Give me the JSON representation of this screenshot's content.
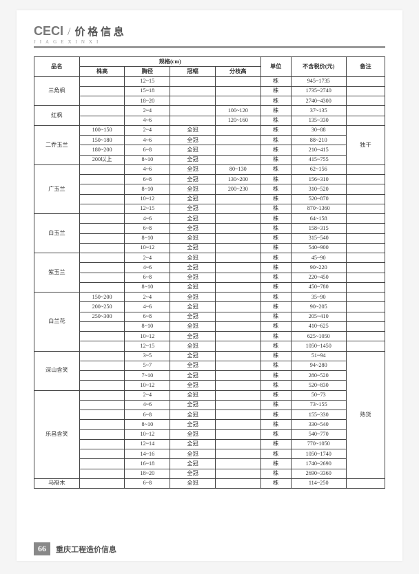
{
  "header": {
    "brand": "CECI",
    "title": "价 格 信 息",
    "pinyin": "JIAGEXINXI"
  },
  "footer": {
    "pageNum": "66",
    "text": "重庆工程造价信息"
  },
  "columns": {
    "name": "品名",
    "specGroup": "规格(cm)",
    "height": "株高",
    "diameter": "胸径",
    "crown": "冠幅",
    "branch": "分枝高",
    "unit": "单位",
    "price": "不含税价(元)",
    "note": "备注"
  },
  "unit": "株",
  "crownText": "全冠",
  "noteTextA": "独干",
  "noteTextB": "熟货",
  "groups": [
    {
      "name": "三角枫",
      "span": 3,
      "rows": [
        {
          "h": "",
          "d": "12~15",
          "c": "",
          "b": "",
          "p": "945~1735"
        },
        {
          "h": "",
          "d": "15~18",
          "c": "",
          "b": "",
          "p": "1735~2740"
        },
        {
          "h": "",
          "d": "18~20",
          "c": "",
          "b": "",
          "p": "2740~4300"
        }
      ]
    },
    {
      "name": "红枫",
      "span": 2,
      "rows": [
        {
          "h": "",
          "d": "2~4",
          "c": "",
          "b": "100~120",
          "p": "37~135"
        },
        {
          "h": "",
          "d": "4~6",
          "c": "",
          "b": "120~160",
          "p": "135~330"
        }
      ]
    },
    {
      "name": "二乔玉兰",
      "span": 4,
      "rows": [
        {
          "h": "100~150",
          "d": "2~4",
          "c": "全冠",
          "b": "",
          "p": "30~88"
        },
        {
          "h": "150~180",
          "d": "4~6",
          "c": "全冠",
          "b": "",
          "p": "88~210"
        },
        {
          "h": "180~200",
          "d": "6~8",
          "c": "全冠",
          "b": "",
          "p": "210~415"
        },
        {
          "h": "200以上",
          "d": "8~10",
          "c": "全冠",
          "b": "",
          "p": "415~755"
        }
      ]
    },
    {
      "name": "广玉兰",
      "span": 5,
      "rows": [
        {
          "h": "",
          "d": "4~6",
          "c": "全冠",
          "b": "80~130",
          "p": "62~156"
        },
        {
          "h": "",
          "d": "6~8",
          "c": "全冠",
          "b": "130~200",
          "p": "156~310"
        },
        {
          "h": "",
          "d": "8~10",
          "c": "全冠",
          "b": "200~230",
          "p": "310~520"
        },
        {
          "h": "",
          "d": "10~12",
          "c": "全冠",
          "b": "",
          "p": "520~870"
        },
        {
          "h": "",
          "d": "12~15",
          "c": "全冠",
          "b": "",
          "p": "870~1360"
        }
      ]
    },
    {
      "name": "白玉兰",
      "span": 4,
      "rows": [
        {
          "h": "",
          "d": "4~6",
          "c": "全冠",
          "b": "",
          "p": "64~158"
        },
        {
          "h": "",
          "d": "6~8",
          "c": "全冠",
          "b": "",
          "p": "158~315"
        },
        {
          "h": "",
          "d": "8~10",
          "c": "全冠",
          "b": "",
          "p": "315~540"
        },
        {
          "h": "",
          "d": "10~12",
          "c": "全冠",
          "b": "",
          "p": "540~900"
        }
      ]
    },
    {
      "name": "紫玉兰",
      "span": 4,
      "rows": [
        {
          "h": "",
          "d": "2~4",
          "c": "全冠",
          "b": "",
          "p": "45~90"
        },
        {
          "h": "",
          "d": "4~6",
          "c": "全冠",
          "b": "",
          "p": "90~220"
        },
        {
          "h": "",
          "d": "6~8",
          "c": "全冠",
          "b": "",
          "p": "220~450"
        },
        {
          "h": "",
          "d": "8~10",
          "c": "全冠",
          "b": "",
          "p": "450~780"
        }
      ]
    },
    {
      "name": "白兰花",
      "span": 6,
      "rows": [
        {
          "h": "150~200",
          "d": "2~4",
          "c": "全冠",
          "b": "",
          "p": "35~90"
        },
        {
          "h": "200~250",
          "d": "4~6",
          "c": "全冠",
          "b": "",
          "p": "90~205"
        },
        {
          "h": "250~300",
          "d": "6~8",
          "c": "全冠",
          "b": "",
          "p": "205~410"
        },
        {
          "h": "",
          "d": "8~10",
          "c": "全冠",
          "b": "",
          "p": "410~625"
        },
        {
          "h": "",
          "d": "10~12",
          "c": "全冠",
          "b": "",
          "p": "625~1050"
        },
        {
          "h": "",
          "d": "12~15",
          "c": "全冠",
          "b": "",
          "p": "1050~1450"
        }
      ]
    },
    {
      "name": "深山含笑",
      "span": 4,
      "rows": [
        {
          "h": "",
          "d": "3~5",
          "c": "全冠",
          "b": "",
          "p": "51~94"
        },
        {
          "h": "",
          "d": "5~7",
          "c": "全冠",
          "b": "",
          "p": "94~280"
        },
        {
          "h": "",
          "d": "7~10",
          "c": "全冠",
          "b": "",
          "p": "280~520"
        },
        {
          "h": "",
          "d": "10~12",
          "c": "全冠",
          "b": "",
          "p": "520~830"
        }
      ]
    },
    {
      "name": "乐昌含笑",
      "span": 9,
      "rows": [
        {
          "h": "",
          "d": "2~4",
          "c": "全冠",
          "b": "",
          "p": "50~73"
        },
        {
          "h": "",
          "d": "4~6",
          "c": "全冠",
          "b": "",
          "p": "73~155"
        },
        {
          "h": "",
          "d": "6~8",
          "c": "全冠",
          "b": "",
          "p": "155~330"
        },
        {
          "h": "",
          "d": "8~10",
          "c": "全冠",
          "b": "",
          "p": "330~540"
        },
        {
          "h": "",
          "d": "10~12",
          "c": "全冠",
          "b": "",
          "p": "540~770"
        },
        {
          "h": "",
          "d": "12~14",
          "c": "全冠",
          "b": "",
          "p": "770~1050"
        },
        {
          "h": "",
          "d": "14~16",
          "c": "全冠",
          "b": "",
          "p": "1050~1740"
        },
        {
          "h": "",
          "d": "16~18",
          "c": "全冠",
          "b": "",
          "p": "1740~2690"
        },
        {
          "h": "",
          "d": "18~20",
          "c": "全冠",
          "b": "",
          "p": "2690~3360"
        }
      ]
    },
    {
      "name": "马褂木",
      "span": 1,
      "rows": [
        {
          "h": "",
          "d": "6~8",
          "c": "全冠",
          "b": "",
          "p": "114~250"
        }
      ]
    }
  ],
  "noteA": {
    "start": 5,
    "span": 4
  },
  "noteB": {
    "start": 28,
    "span": 13
  }
}
